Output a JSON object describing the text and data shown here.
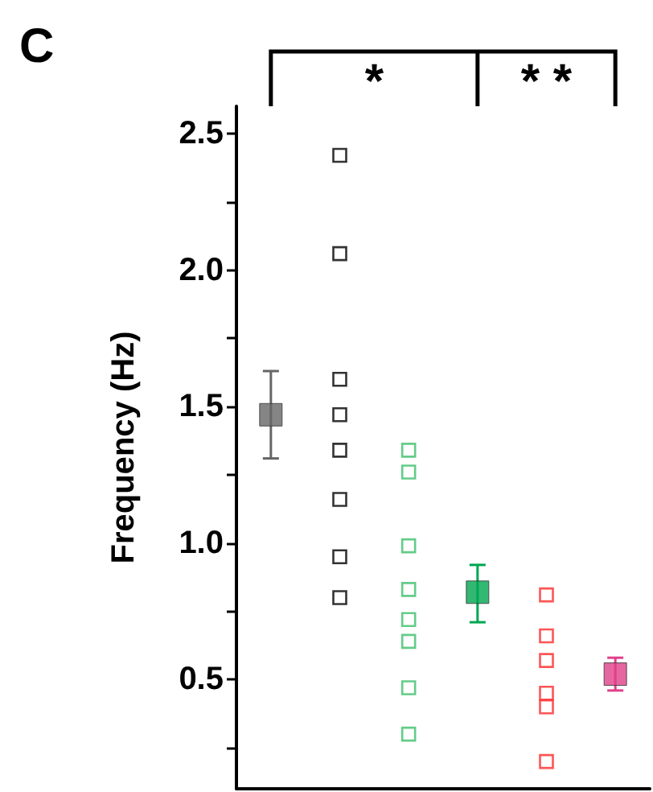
{
  "chart_data": {
    "type": "scatter",
    "ylabel": "Frequency (Hz)",
    "annotations": [
      "C",
      "*",
      "* *"
    ],
    "categories": [
      null,
      null,
      null,
      null,
      null,
      null
    ],
    "ylim": [
      0.1,
      2.6
    ],
    "yticks": [
      {
        "value": 0.25,
        "label": null
      },
      0.5,
      {
        "value": 0.75,
        "label": null
      },
      {
        "value": 1.0,
        "label": "1.0"
      },
      {
        "value": 1.25,
        "label": null
      },
      1.5,
      {
        "value": 1.75,
        "label": null
      },
      {
        "value": 2.0,
        "label": "2.0"
      },
      {
        "value": 2.25,
        "label": null
      },
      2.5
    ],
    "tick_labels": "y",
    "grid": false,
    "marker": "square",
    "series": [
      {
        "colors": [
          "#666666",
          null,
          null,
          "#00a651",
          null,
          "#e0408a"
        ],
        "values": [
          1.47,
          null,
          null,
          0.82,
          null,
          0.52
        ],
        "errors": [
          [
            1.31,
            1.63
          ],
          null,
          null,
          [
            0.71,
            0.92
          ],
          null,
          [
            0.46,
            0.58
          ]
        ]
      },
      {
        "colors": [
          null,
          "#000000",
          "#3cbf6a",
          null,
          "#ff2a2a",
          null
        ],
        "values": [
          null,
          2.42,
          1.34,
          null,
          0.81,
          null
        ]
      },
      {
        "colors": [
          null,
          "#000000",
          "#3cbf6a",
          null,
          "#ff2a2a",
          null
        ],
        "values": [
          null,
          2.06,
          1.26,
          null,
          0.66,
          null
        ]
      },
      {
        "colors": [
          null,
          "#000000",
          "#3cbf6a",
          null,
          "#ff2a2a",
          null
        ],
        "values": [
          null,
          1.6,
          0.99,
          null,
          0.57,
          null
        ]
      },
      {
        "colors": [
          null,
          "#000000",
          "#3cbf6a",
          null,
          "#ff2a2a",
          null
        ],
        "values": [
          null,
          1.47,
          0.83,
          null,
          0.45,
          null
        ]
      },
      {
        "colors": [
          null,
          "#000000",
          "#3cbf6a",
          null,
          "#ff2a2a",
          null
        ],
        "values": [
          null,
          1.34,
          0.72,
          null,
          0.4,
          null
        ]
      },
      {
        "colors": [
          null,
          "#000000",
          "#3cbf6a",
          null,
          "#ff2a2a",
          null
        ],
        "values": [
          null,
          1.16,
          0.64,
          null,
          0.2,
          null
        ]
      },
      {
        "colors": [
          null,
          "#000000",
          "#3cbf6a",
          null,
          null,
          null
        ],
        "values": [
          null,
          0.95,
          0.47,
          null,
          null,
          null
        ]
      },
      {
        "colors": [
          null,
          "#000000",
          "#3cbf6a",
          null,
          null,
          null
        ],
        "values": [
          null,
          0.8,
          0.3,
          null,
          null,
          null
        ]
      }
    ]
  }
}
